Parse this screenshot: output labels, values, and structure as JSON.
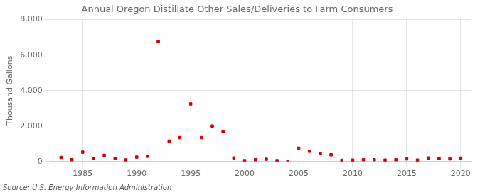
{
  "chart_data": {
    "type": "scatter",
    "title": "Annual Oregon Distillate Other Sales/Deliveries to Farm Consumers",
    "ylabel": "Thousand Gallons",
    "annotation": "Source: U.S. Energy Information Administration",
    "x": [
      1983,
      1984,
      1985,
      1986,
      1987,
      1988,
      1989,
      1990,
      1991,
      1992,
      1993,
      1994,
      1995,
      1996,
      1997,
      1998,
      1999,
      2000,
      2001,
      2002,
      2003,
      2004,
      2005,
      2006,
      2007,
      2008,
      2009,
      2010,
      2011,
      2012,
      2013,
      2014,
      2015,
      2016,
      2017,
      2018,
      2019,
      2020
    ],
    "values": [
      230,
      100,
      530,
      170,
      350,
      170,
      90,
      250,
      300,
      6750,
      1150,
      1350,
      3250,
      1350,
      2000,
      1700,
      200,
      50,
      100,
      130,
      50,
      20,
      750,
      580,
      450,
      380,
      70,
      80,
      100,
      100,
      80,
      100,
      150,
      80,
      200,
      180,
      150,
      190
    ],
    "color": "#cc0000",
    "marker": "square",
    "xlim": [
      1982,
      2021
    ],
    "xticks": [
      1985,
      1990,
      1995,
      2000,
      2005,
      2010,
      2015,
      2020
    ],
    "ylim": [
      0,
      8000
    ],
    "yticks": [
      0,
      {
        "value": 2000,
        "label": "2,000"
      },
      {
        "value": 4000,
        "label": "4,000"
      },
      {
        "value": 6000,
        "label": "6,000"
      },
      {
        "value": 8000,
        "label": "8,000"
      }
    ],
    "grid": true
  }
}
